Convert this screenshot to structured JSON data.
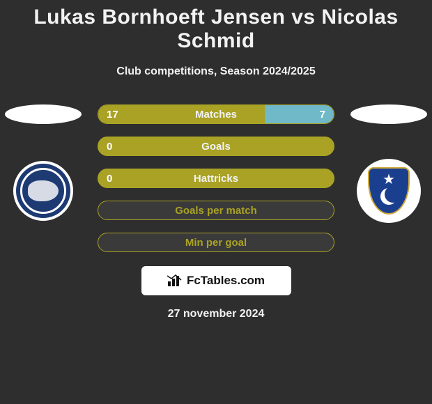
{
  "background_color": "#2e2e2e",
  "text_color": "#f2f2f2",
  "title": "Lukas Bornhoeft Jensen vs Nicolas Schmid",
  "title_fontsize": 30,
  "subtitle": "Club competitions, Season 2024/2025",
  "subtitle_fontsize": 16,
  "player1": {
    "oval_color": "#ffffff",
    "badge": {
      "outer_color": "#ffffff",
      "ring_color": "#1d3a73",
      "inner_color": "#1d3a73",
      "lion_color": "#d6dbe5"
    }
  },
  "player2": {
    "oval_color": "#ffffff",
    "badge": {
      "outer_color": "#ffffff",
      "shield_color": "#1b3f8f",
      "shield_border": "#cfa93a",
      "star_color": "#ffffff",
      "crescent_color": "#ffffff",
      "crescent_cut": "#1b3f8f"
    }
  },
  "stats": [
    {
      "label": "Matches",
      "left_value": "17",
      "right_value": "7",
      "left_pct": 70.8,
      "right_pct": 29.2,
      "bar_border": "#a9a225",
      "bar_bg": "#3a3a3a",
      "left_fill": "#a9a225",
      "right_fill": "#6fb9c8",
      "center_text_color": "#f2f2f2",
      "val_text_color": "#ffffff"
    },
    {
      "label": "Goals",
      "left_value": "0",
      "right_value": "",
      "left_pct": 100,
      "right_pct": 0,
      "bar_border": "#a9a225",
      "bar_bg": "#a9a225",
      "left_fill": "#a9a225",
      "right_fill": "#6fb9c8",
      "center_text_color": "#f2f2f2",
      "val_text_color": "#ffffff"
    },
    {
      "label": "Hattricks",
      "left_value": "0",
      "right_value": "",
      "left_pct": 100,
      "right_pct": 0,
      "bar_border": "#a9a225",
      "bar_bg": "#a9a225",
      "left_fill": "#a9a225",
      "right_fill": "#6fb9c8",
      "center_text_color": "#f2f2f2",
      "val_text_color": "#ffffff"
    },
    {
      "label": "Goals per match",
      "left_value": "",
      "right_value": "",
      "left_pct": 0,
      "right_pct": 0,
      "bar_border": "#a9a225",
      "bar_bg": "#3a3a3a",
      "left_fill": "#a9a225",
      "right_fill": "#6fb9c8",
      "center_text_color": "#a9a225",
      "val_text_color": "#ffffff"
    },
    {
      "label": "Min per goal",
      "left_value": "",
      "right_value": "",
      "left_pct": 0,
      "right_pct": 0,
      "bar_border": "#a9a225",
      "bar_bg": "#3a3a3a",
      "left_fill": "#a9a225",
      "right_fill": "#6fb9c8",
      "center_text_color": "#a9a225",
      "val_text_color": "#ffffff"
    }
  ],
  "watermark": {
    "box_bg": "#ffffff",
    "text": "FcTables.com",
    "text_color": "#111111",
    "icon_color": "#111111"
  },
  "date": "27 november 2024"
}
